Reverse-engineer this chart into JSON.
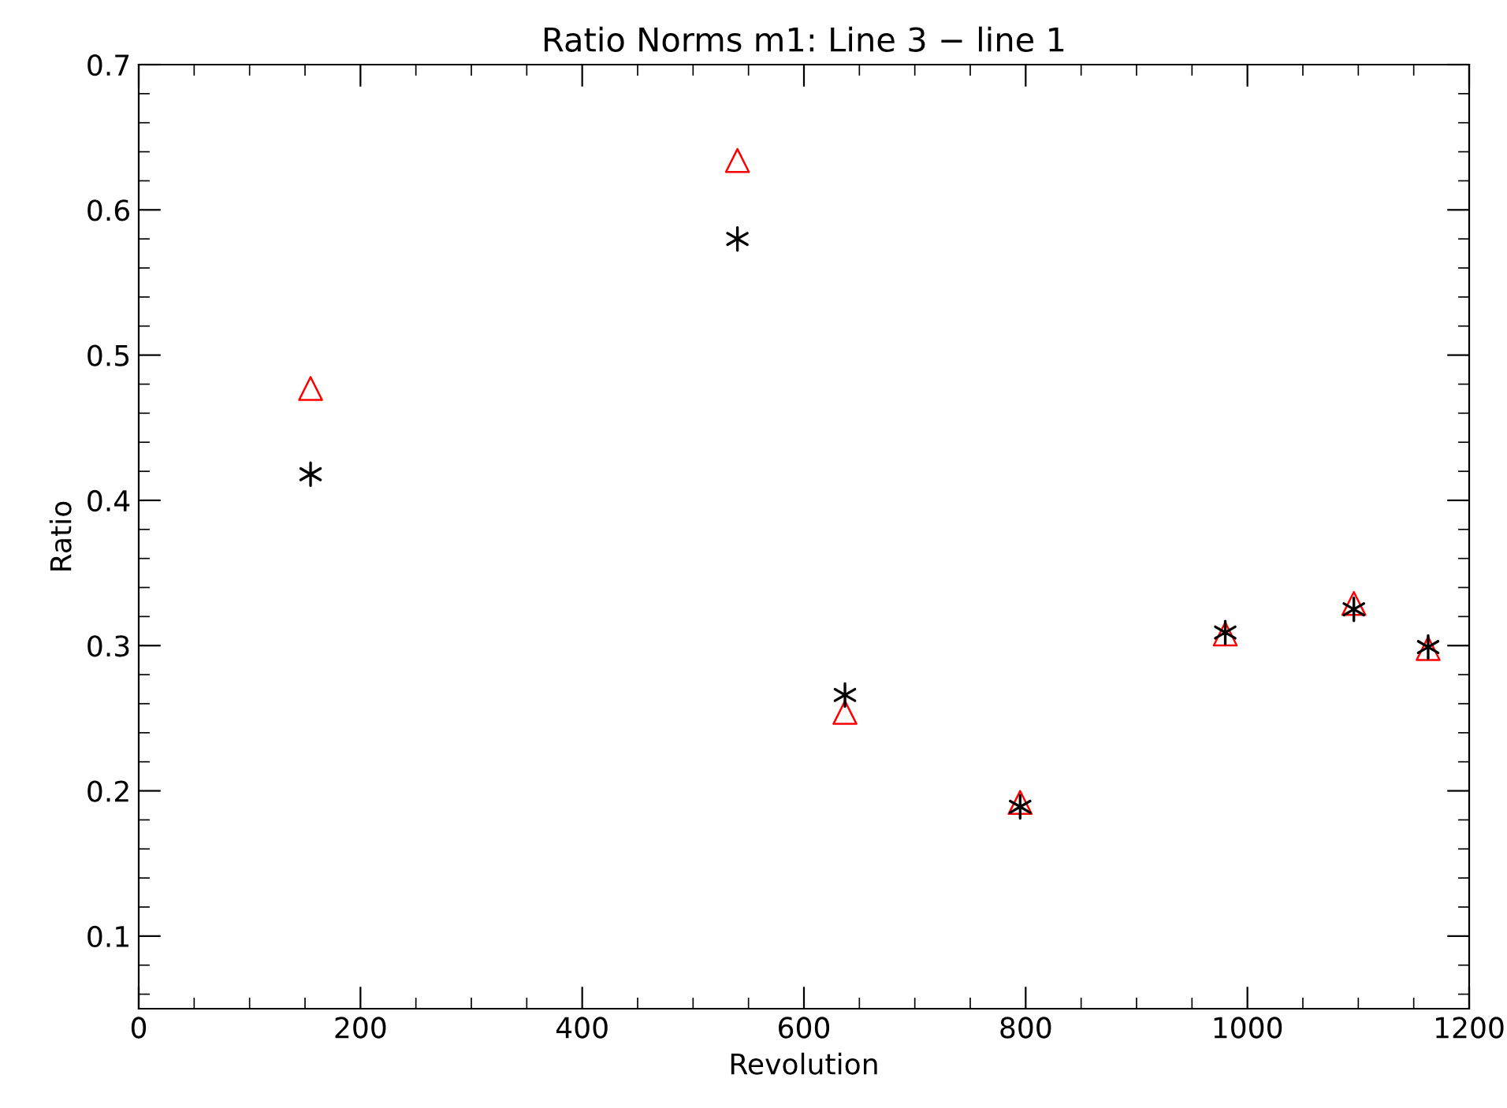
{
  "chart_data": {
    "type": "scatter",
    "title": "Ratio Norms m1: Line 3 − line 1",
    "xlabel": "Revolution",
    "ylabel": "Ratio",
    "x": [
      155,
      540,
      637,
      795,
      980,
      1096,
      1163
    ],
    "series": [
      {
        "color": "#ff0000",
        "marker": "triangle",
        "values": [
          0.477,
          0.634,
          0.254,
          0.192,
          0.308,
          0.329,
          0.298
        ]
      },
      {
        "color": "#000000",
        "marker": "cross",
        "values": [
          0.418,
          0.58,
          0.266,
          0.189,
          0.309,
          0.325,
          0.299
        ]
      }
    ],
    "xlim": [
      0,
      1200
    ],
    "xticks": [
      0,
      200,
      400,
      600,
      800,
      1000,
      1200
    ],
    "ylim": [
      0.05,
      0.7
    ],
    "yticks": [
      0.1,
      0.2,
      0.3,
      0.4,
      0.5,
      0.6,
      0.7
    ],
    "grid": false
  }
}
